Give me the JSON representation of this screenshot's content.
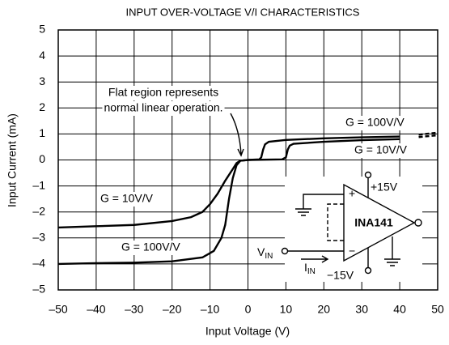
{
  "chart_data": {
    "type": "line",
    "title": "INPUT OVER-VOLTAGE V/I CHARACTERISTICS",
    "xlabel": "Input Voltage (V)",
    "ylabel": "Input Current (mA)",
    "xlim": [
      -50,
      50
    ],
    "ylim": [
      -5,
      5
    ],
    "xticks": [
      {
        "value": -50,
        "label": "–50"
      },
      {
        "value": -40,
        "label": "–40"
      },
      {
        "value": -30,
        "label": "–30"
      },
      {
        "value": -20,
        "label": "–20"
      },
      {
        "value": -10,
        "label": "–10"
      },
      0,
      10,
      20,
      30,
      40,
      50
    ],
    "yticks": [
      {
        "value": -5,
        "label": "–5"
      },
      {
        "value": -4,
        "label": "–4"
      },
      {
        "value": -3,
        "label": "–3"
      },
      {
        "value": -2,
        "label": "–2"
      },
      {
        "value": -1,
        "label": "–1"
      },
      0,
      1,
      2,
      3,
      4,
      5
    ],
    "grid": true,
    "series": [
      {
        "name": "G = 100V/V",
        "color": "#000000",
        "dashed_after": 40,
        "x": [
          -50,
          -40,
          -30,
          -20,
          -12,
          -9,
          -7,
          -6,
          -5,
          -4,
          -3,
          -2,
          0,
          3,
          3.5,
          4,
          4.5,
          5.5,
          10,
          20,
          30,
          40,
          45,
          50
        ],
        "values": [
          -4,
          -3.97,
          -3.95,
          -3.9,
          -3.75,
          -3.5,
          -3,
          -2.5,
          -1.5,
          -0.7,
          -0.2,
          -0.03,
          0,
          0.02,
          0.1,
          0.4,
          0.6,
          0.7,
          0.77,
          0.83,
          0.87,
          0.9,
          0.97,
          1.05
        ]
      },
      {
        "name": "G = 10V/V",
        "color": "#000000",
        "dashed_after": 40,
        "x": [
          -50,
          -40,
          -30,
          -20,
          -15,
          -12,
          -10,
          -8,
          -6,
          -4,
          -3,
          -2,
          0,
          9,
          10,
          10.5,
          11,
          12,
          20,
          30,
          40,
          45,
          50
        ],
        "values": [
          -2.6,
          -2.55,
          -2.5,
          -2.35,
          -2.2,
          -2,
          -1.7,
          -1.3,
          -0.8,
          -0.35,
          -0.12,
          -0.03,
          0,
          0.02,
          0.1,
          0.4,
          0.55,
          0.62,
          0.7,
          0.76,
          0.8,
          0.88,
          0.95
        ]
      }
    ],
    "annotations": [
      "Flat region represents",
      "normal linear operation."
    ],
    "diagram": {
      "part": "INA141",
      "positive_supply": "+15V",
      "negative_supply": "−15V",
      "plus": "+",
      "minus": "−",
      "voltage": "V",
      "voltage_sub": "IN",
      "current": "I",
      "current_sub": "IN"
    }
  }
}
